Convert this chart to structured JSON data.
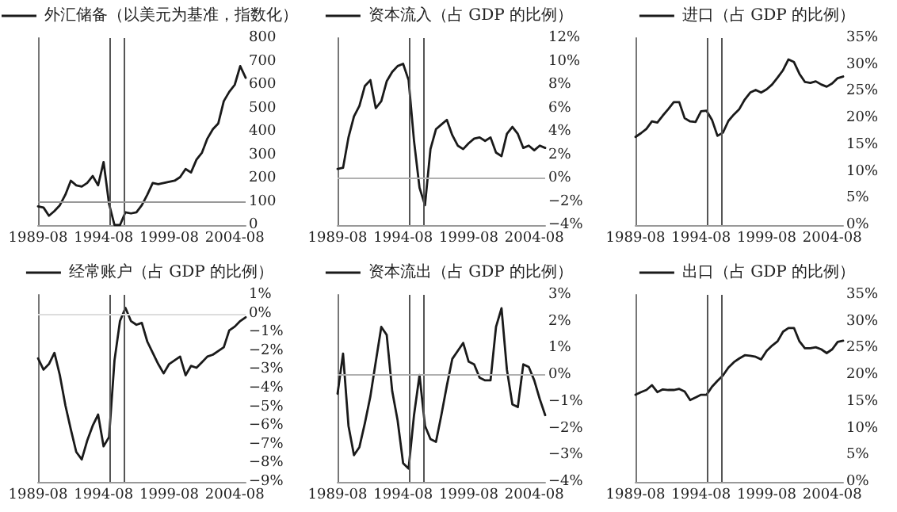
{
  "chart_data": [
    {
      "type": "line",
      "legend": "top",
      "marker": "none",
      "line_style": "solid",
      "grid": false,
      "x": [
        "1989-08",
        "1990-01",
        "1990-06",
        "1990-11",
        "1991-04",
        "1991-09",
        "1992-02",
        "1992-07",
        "1992-12",
        "1993-05",
        "1993-10",
        "1994-03",
        "1994-08",
        "1995-01",
        "1995-06",
        "1995-11",
        "1996-04",
        "1996-09",
        "1997-02",
        "1997-07",
        "1997-12",
        "1998-05",
        "1998-10",
        "1999-03",
        "1999-08",
        "2000-01",
        "2000-06",
        "2000-11",
        "2001-04",
        "2001-09",
        "2002-02",
        "2002-07",
        "2002-12",
        "2003-05",
        "2003-10",
        "2004-03",
        "2004-08",
        "2005-01",
        "2005-06"
      ],
      "series": [
        {
          "name": "外汇储备（以美元为基准，指数化）",
          "color": "#1a1a1a",
          "values": [
            80,
            75,
            40,
            60,
            85,
            130,
            190,
            170,
            165,
            180,
            210,
            170,
            270,
            90,
            0,
            0,
            55,
            50,
            55,
            85,
            130,
            180,
            175,
            180,
            185,
            190,
            205,
            240,
            225,
            280,
            310,
            370,
            410,
            435,
            530,
            570,
            600,
            680,
            630
          ]
        }
      ],
      "xlim": [
        "1989-08",
        "2005-06"
      ],
      "xticks": [
        "1989-08",
        "1994-08",
        "1999-08",
        "2004-08"
      ],
      "ylim": [
        0,
        800
      ],
      "yticks": [
        0,
        100,
        200,
        300,
        400,
        500,
        600,
        700,
        800
      ],
      "ref_lines": [
        {
          "axis": "x",
          "value": "1995-01",
          "color": "#555555"
        },
        {
          "axis": "x",
          "value": "1996-03",
          "color": "#555555"
        },
        {
          "axis": "y",
          "value": 100,
          "color": "#999999"
        }
      ]
    },
    {
      "type": "line",
      "legend": "top",
      "marker": "none",
      "line_style": "solid",
      "grid": false,
      "x": [
        "1989-08",
        "1990-01",
        "1990-06",
        "1990-11",
        "1991-04",
        "1991-09",
        "1992-02",
        "1992-07",
        "1992-12",
        "1993-05",
        "1993-10",
        "1994-03",
        "1994-08",
        "1995-01",
        "1995-06",
        "1995-11",
        "1996-04",
        "1996-09",
        "1997-02",
        "1997-07",
        "1997-12",
        "1998-05",
        "1998-10",
        "1999-03",
        "1999-08",
        "2000-01",
        "2000-06",
        "2000-11",
        "2001-04",
        "2001-09",
        "2002-02",
        "2002-07",
        "2002-12",
        "2003-05",
        "2003-10",
        "2004-03",
        "2004-08",
        "2005-01",
        "2005-06"
      ],
      "series": [
        {
          "name": "资本流入（占 GDP 的比例）",
          "color": "#1a1a1a",
          "values": [
            0.8,
            0.9,
            3.5,
            5.3,
            6.2,
            7.9,
            8.4,
            6.0,
            6.6,
            8.3,
            9.1,
            9.6,
            9.8,
            8.4,
            3.2,
            -0.8,
            -2.3,
            2.5,
            4.2,
            4.6,
            5.0,
            3.7,
            2.8,
            2.5,
            3.0,
            3.4,
            3.5,
            3.2,
            3.5,
            2.2,
            1.9,
            3.8,
            4.4,
            3.8,
            2.6,
            2.8,
            2.4,
            2.8,
            2.6
          ]
        }
      ],
      "xlim": [
        "1989-08",
        "2005-06"
      ],
      "xticks": [
        "1989-08",
        "1994-08",
        "1999-08",
        "2004-08"
      ],
      "ylim": [
        -4,
        12
      ],
      "yticks": [
        {
          "value": -4,
          "label": "−4%"
        },
        {
          "value": -2,
          "label": "−2%"
        },
        {
          "value": 0,
          "label": "0%"
        },
        {
          "value": 2,
          "label": "2%"
        },
        {
          "value": 4,
          "label": "4%"
        },
        {
          "value": 6,
          "label": "6%"
        },
        {
          "value": 8,
          "label": "8%"
        },
        {
          "value": 10,
          "label": "10%"
        },
        {
          "value": 12,
          "label": "12%"
        }
      ],
      "ref_lines": [
        {
          "axis": "x",
          "value": "1995-01",
          "color": "#555555"
        },
        {
          "axis": "x",
          "value": "1996-03",
          "color": "#555555"
        },
        {
          "axis": "y",
          "value": 0,
          "color": "#b0b0b0"
        }
      ]
    },
    {
      "type": "line",
      "legend": "top",
      "marker": "none",
      "line_style": "solid",
      "grid": false,
      "x": [
        "1989-08",
        "1990-01",
        "1990-06",
        "1990-11",
        "1991-04",
        "1991-09",
        "1992-02",
        "1992-07",
        "1992-12",
        "1993-05",
        "1993-10",
        "1994-03",
        "1994-08",
        "1995-01",
        "1995-06",
        "1995-11",
        "1996-04",
        "1996-09",
        "1997-02",
        "1997-07",
        "1997-12",
        "1998-05",
        "1998-10",
        "1999-03",
        "1999-08",
        "2000-01",
        "2000-06",
        "2000-11",
        "2001-04",
        "2001-09",
        "2002-02",
        "2002-07",
        "2002-12",
        "2003-05",
        "2003-10",
        "2004-03",
        "2004-08",
        "2005-01",
        "2005-06"
      ],
      "series": [
        {
          "name": "进口（占 GDP 的比例）",
          "color": "#1a1a1a",
          "values": [
            16.5,
            17.2,
            18.0,
            19.4,
            19.2,
            20.5,
            21.7,
            23.0,
            23.0,
            20.0,
            19.4,
            19.3,
            21.3,
            21.4,
            19.7,
            16.7,
            17.3,
            19.5,
            20.7,
            21.7,
            23.5,
            24.8,
            25.3,
            24.8,
            25.4,
            26.3,
            27.6,
            29.0,
            31.0,
            30.5,
            28.3,
            26.8,
            26.6,
            26.9,
            26.3,
            25.9,
            26.5,
            27.5,
            27.8
          ]
        }
      ],
      "xlim": [
        "1989-08",
        "2005-06"
      ],
      "xticks": [
        "1989-08",
        "1994-08",
        "1999-08",
        "2004-08"
      ],
      "ylim": [
        0,
        35
      ],
      "yticks": [
        {
          "value": 0,
          "label": "0%"
        },
        {
          "value": 5,
          "label": "5%"
        },
        {
          "value": 10,
          "label": "10%"
        },
        {
          "value": 15,
          "label": "15%"
        },
        {
          "value": 20,
          "label": "20%"
        },
        {
          "value": 25,
          "label": "25%"
        },
        {
          "value": 30,
          "label": "30%"
        },
        {
          "value": 35,
          "label": "35%"
        }
      ],
      "ref_lines": [
        {
          "axis": "x",
          "value": "1995-01",
          "color": "#555555"
        },
        {
          "axis": "x",
          "value": "1996-03",
          "color": "#555555"
        }
      ]
    },
    {
      "type": "line",
      "legend": "top",
      "marker": "none",
      "line_style": "solid",
      "grid": false,
      "x": [
        "1989-08",
        "1990-01",
        "1990-06",
        "1990-11",
        "1991-04",
        "1991-09",
        "1992-02",
        "1992-07",
        "1992-12",
        "1993-05",
        "1993-10",
        "1994-03",
        "1994-08",
        "1995-01",
        "1995-06",
        "1995-11",
        "1996-04",
        "1996-09",
        "1997-02",
        "1997-07",
        "1997-12",
        "1998-05",
        "1998-10",
        "1999-03",
        "1999-08",
        "2000-01",
        "2000-06",
        "2000-11",
        "2001-04",
        "2001-09",
        "2002-02",
        "2002-07",
        "2002-12",
        "2003-05",
        "2003-10",
        "2004-03",
        "2004-08",
        "2005-01",
        "2005-06"
      ],
      "series": [
        {
          "name": "经常账户（占 GDP 的比例）",
          "color": "#1a1a1a",
          "values": [
            -2.4,
            -3.0,
            -2.7,
            -2.1,
            -3.3,
            -4.9,
            -6.2,
            -7.4,
            -7.8,
            -6.8,
            -6.0,
            -5.4,
            -7.1,
            -6.6,
            -2.5,
            -0.4,
            0.3,
            -0.4,
            -0.6,
            -0.5,
            -1.5,
            -2.1,
            -2.7,
            -3.2,
            -2.7,
            -2.5,
            -2.3,
            -3.3,
            -2.8,
            -2.9,
            -2.6,
            -2.3,
            -2.2,
            -2.0,
            -1.8,
            -0.9,
            -0.7,
            -0.4,
            -0.2
          ]
        }
      ],
      "xlim": [
        "1989-08",
        "2005-06"
      ],
      "xticks": [
        "1989-08",
        "1994-08",
        "1999-08",
        "2004-08"
      ],
      "ylim": [
        -9,
        1
      ],
      "yticks": [
        {
          "value": -9,
          "label": "−9%"
        },
        {
          "value": -8,
          "label": "−8%"
        },
        {
          "value": -7,
          "label": "−7%"
        },
        {
          "value": -6,
          "label": "−6%"
        },
        {
          "value": -5,
          "label": "−5%"
        },
        {
          "value": -4,
          "label": "−4%"
        },
        {
          "value": -3,
          "label": "−3%"
        },
        {
          "value": -2,
          "label": "−2%"
        },
        {
          "value": -1,
          "label": "−1%"
        },
        {
          "value": 0,
          "label": "0%"
        },
        {
          "value": 1,
          "label": "1%"
        }
      ],
      "ref_lines": [
        {
          "axis": "x",
          "value": "1995-01",
          "color": "#555555"
        },
        {
          "axis": "x",
          "value": "1996-03",
          "color": "#555555"
        },
        {
          "axis": "y",
          "value": 0,
          "color": "#dddddd"
        }
      ]
    },
    {
      "type": "line",
      "legend": "top",
      "marker": "none",
      "line_style": "solid",
      "grid": false,
      "x": [
        "1989-08",
        "1990-01",
        "1990-06",
        "1990-11",
        "1991-04",
        "1991-09",
        "1992-02",
        "1992-07",
        "1992-12",
        "1993-05",
        "1993-10",
        "1994-03",
        "1994-08",
        "1995-01",
        "1995-06",
        "1995-11",
        "1996-04",
        "1996-09",
        "1997-02",
        "1997-07",
        "1997-12",
        "1998-05",
        "1998-10",
        "1999-03",
        "1999-08",
        "2000-01",
        "2000-06",
        "2000-11",
        "2001-04",
        "2001-09",
        "2002-02",
        "2002-07",
        "2002-12",
        "2003-05",
        "2003-10",
        "2004-03",
        "2004-08",
        "2005-01",
        "2005-06"
      ],
      "series": [
        {
          "name": "资本流出（占 GDP 的比例）",
          "color": "#1a1a1a",
          "values": [
            -0.7,
            0.8,
            -1.9,
            -3.0,
            -2.7,
            -1.8,
            -0.8,
            0.5,
            1.8,
            1.5,
            -0.6,
            -1.7,
            -3.3,
            -3.5,
            -1.5,
            0.0,
            -1.9,
            -2.4,
            -2.5,
            -1.5,
            -0.4,
            0.6,
            0.9,
            1.2,
            0.5,
            0.4,
            -0.1,
            -0.2,
            -0.2,
            1.8,
            2.5,
            0.2,
            -1.1,
            -1.2,
            0.4,
            0.3,
            -0.2,
            -0.9,
            -1.5
          ]
        }
      ],
      "xlim": [
        "1989-08",
        "2005-06"
      ],
      "xticks": [
        "1989-08",
        "1994-08",
        "1999-08",
        "2004-08"
      ],
      "ylim": [
        -4,
        3
      ],
      "yticks": [
        {
          "value": -4,
          "label": "−4%"
        },
        {
          "value": -3,
          "label": "−3%"
        },
        {
          "value": -2,
          "label": "−2%"
        },
        {
          "value": -1,
          "label": "−1%"
        },
        {
          "value": 0,
          "label": "0%"
        },
        {
          "value": 1,
          "label": "1%"
        },
        {
          "value": 2,
          "label": "2%"
        },
        {
          "value": 3,
          "label": "3%"
        }
      ],
      "ref_lines": [
        {
          "axis": "x",
          "value": "1995-01",
          "color": "#555555"
        },
        {
          "axis": "x",
          "value": "1996-03",
          "color": "#555555"
        },
        {
          "axis": "y",
          "value": 0,
          "color": "#b0b0b0"
        }
      ]
    },
    {
      "type": "line",
      "legend": "top",
      "marker": "none",
      "line_style": "solid",
      "grid": false,
      "x": [
        "1989-08",
        "1990-01",
        "1990-06",
        "1990-11",
        "1991-04",
        "1991-09",
        "1992-02",
        "1992-07",
        "1992-12",
        "1993-05",
        "1993-10",
        "1994-03",
        "1994-08",
        "1995-01",
        "1995-06",
        "1995-11",
        "1996-04",
        "1996-09",
        "1997-02",
        "1997-07",
        "1997-12",
        "1998-05",
        "1998-10",
        "1999-03",
        "1999-08",
        "2000-01",
        "2000-06",
        "2000-11",
        "2001-04",
        "2001-09",
        "2002-02",
        "2002-07",
        "2002-12",
        "2003-05",
        "2003-10",
        "2004-03",
        "2004-08",
        "2005-01",
        "2005-06"
      ],
      "series": [
        {
          "name": "出口（占 GDP 的比例）",
          "color": "#1a1a1a",
          "values": [
            16.3,
            16.8,
            17.2,
            18.1,
            16.8,
            17.3,
            17.2,
            17.2,
            17.4,
            16.9,
            15.3,
            15.8,
            16.3,
            16.3,
            17.8,
            18.9,
            19.9,
            21.4,
            22.4,
            23.1,
            23.7,
            23.6,
            23.4,
            22.9,
            24.5,
            25.5,
            26.3,
            28.1,
            28.8,
            28.8,
            26.3,
            25.0,
            25.0,
            25.2,
            24.8,
            24.1,
            24.8,
            26.2,
            26.4
          ]
        }
      ],
      "xlim": [
        "1989-08",
        "2005-06"
      ],
      "xticks": [
        "1989-08",
        "1994-08",
        "1999-08",
        "2004-08"
      ],
      "ylim": [
        0,
        35
      ],
      "yticks": [
        {
          "value": 0,
          "label": "0%"
        },
        {
          "value": 5,
          "label": "5%"
        },
        {
          "value": 10,
          "label": "10%"
        },
        {
          "value": 15,
          "label": "15%"
        },
        {
          "value": 20,
          "label": "20%"
        },
        {
          "value": 25,
          "label": "25%"
        },
        {
          "value": 30,
          "label": "30%"
        },
        {
          "value": 35,
          "label": "35%"
        }
      ],
      "ref_lines": [
        {
          "axis": "x",
          "value": "1995-01",
          "color": "#555555"
        },
        {
          "axis": "x",
          "value": "1996-03",
          "color": "#555555"
        }
      ]
    }
  ]
}
